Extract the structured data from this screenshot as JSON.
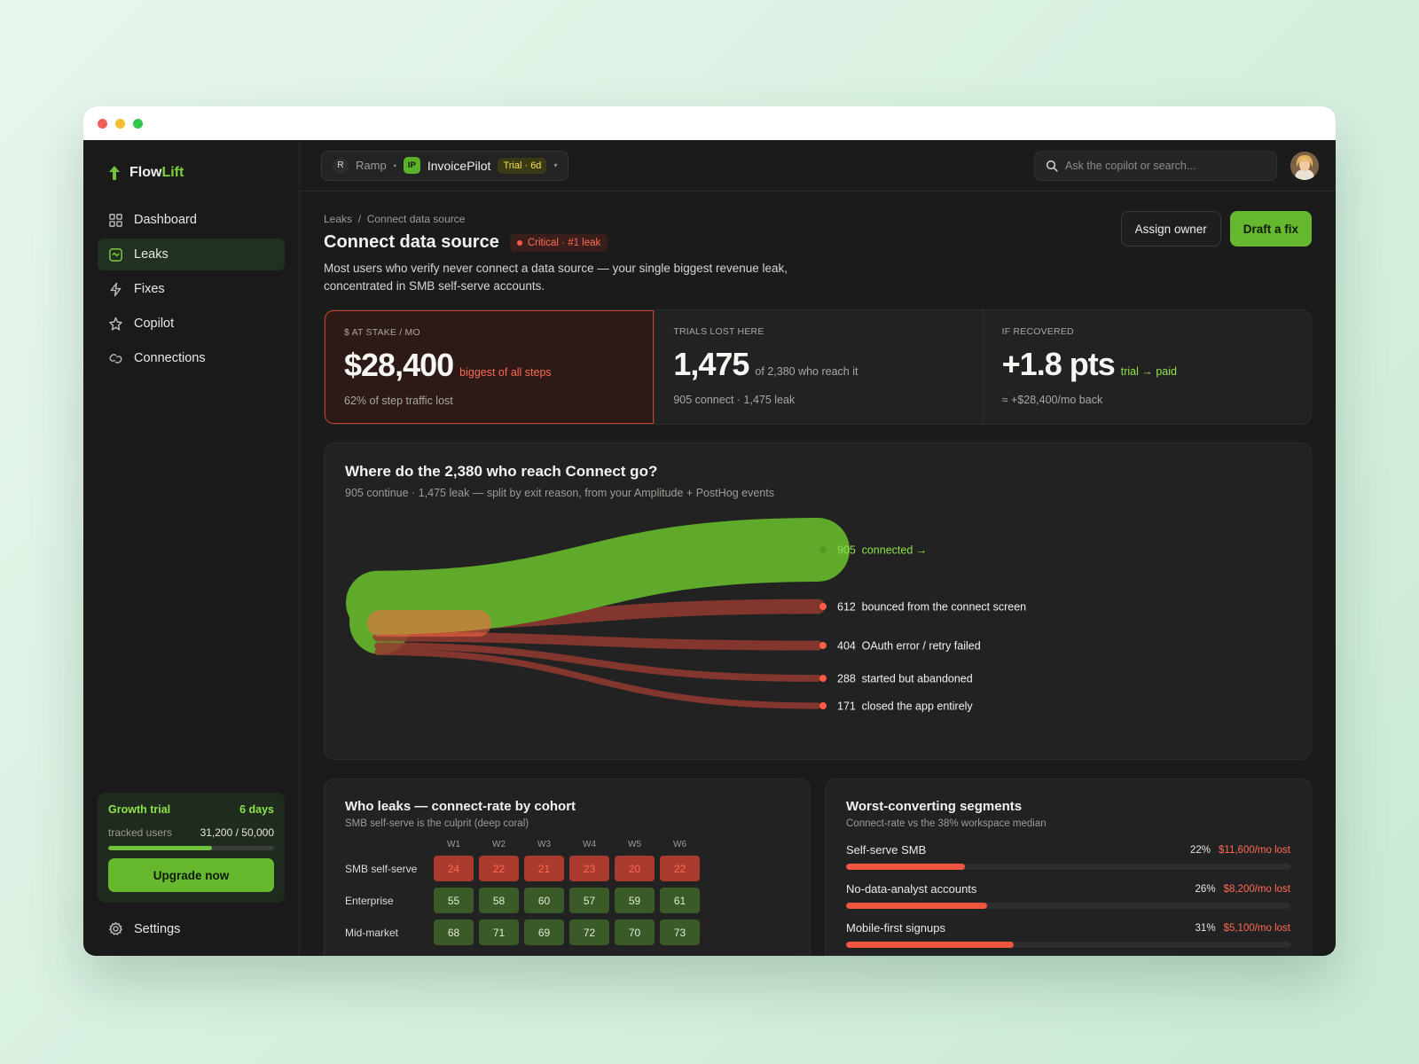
{
  "app": {
    "logo_text_a": "Flow",
    "logo_text_b": "Lift"
  },
  "sidebar": {
    "items": [
      {
        "label": "Dashboard",
        "icon": "grid-icon"
      },
      {
        "label": "Leaks",
        "icon": "leak-icon",
        "active": true
      },
      {
        "label": "Fixes",
        "icon": "bolt-icon"
      },
      {
        "label": "Copilot",
        "icon": "sparkle-icon"
      },
      {
        "label": "Connections",
        "icon": "link-icon"
      }
    ],
    "trial": {
      "title": "Growth trial",
      "days": "6 days",
      "tracked_label": "tracked users",
      "tracked_value": "31,200 / 50,000",
      "progress": 0.624,
      "upgrade_label": "Upgrade now"
    },
    "settings_label": "Settings"
  },
  "topbar": {
    "org_initial": "R",
    "org_name": "Ramp",
    "sep": "•",
    "app_initials": "IP",
    "app_name": "InvoicePilot",
    "trial_pill": "Trial · 6d",
    "caret": "▾",
    "search_placeholder": "Ask the copilot or search..."
  },
  "header": {
    "breadcrumb": "Leaks  /  Connect data source",
    "title": "Connect data source",
    "badge": "Critical · #1 leak",
    "description": "Most users who verify never connect a data source — your single biggest revenue leak, concentrated in SMB self-serve accounts.",
    "assign_label": "Assign owner",
    "draft_label": "Draft a fix"
  },
  "stats": [
    {
      "label": "$ AT STAKE / MO",
      "value": "$28,400",
      "aside": "biggest of all steps",
      "sub": "62% of step traffic lost"
    },
    {
      "label": "TRIALS LOST HERE",
      "value": "1,475",
      "aside": "of 2,380 who reach it",
      "sub": "905 connect · 1,475 leak"
    },
    {
      "label": "IF RECOVERED",
      "value": "+1.8 pts",
      "aside": "trial → paid",
      "sub": "≈ +$28,400/mo back"
    }
  ],
  "flow": {
    "title": "Where do the 2,380 who reach Connect go?",
    "subtitle": "905 continue · 1,475 leak — split by exit reason, from your Amplitude + PostHog events",
    "total": 2380,
    "branches": [
      {
        "value": 905,
        "count": "905",
        "label": "connected →",
        "kind": "good"
      },
      {
        "value": 612,
        "count": "612",
        "label": "bounced from the connect screen",
        "kind": "bad"
      },
      {
        "value": 404,
        "count": "404",
        "label": "OAuth error / retry failed",
        "kind": "bad"
      },
      {
        "value": 288,
        "count": "288",
        "label": "started but abandoned",
        "kind": "bad"
      },
      {
        "value": 171,
        "count": "171",
        "label": "closed the app entirely",
        "kind": "bad"
      }
    ]
  },
  "cohort": {
    "title": "Who leaks — connect-rate by cohort",
    "subtitle": "SMB self-serve is the culprit (deep coral)",
    "weeks": [
      "W1",
      "W2",
      "W3",
      "W4",
      "W5",
      "W6"
    ],
    "rows": [
      {
        "name": "SMB self-serve",
        "values": [
          24,
          22,
          21,
          23,
          20,
          22
        ],
        "bad": true
      },
      {
        "name": "Enterprise",
        "values": [
          55,
          58,
          60,
          57,
          59,
          61
        ],
        "bad": false
      },
      {
        "name": "Mid-market",
        "values": [
          68,
          71,
          69,
          72,
          70,
          73
        ],
        "bad": false
      }
    ]
  },
  "segments": {
    "title": "Worst-converting segments",
    "subtitle": "Connect-rate vs the 38% workspace median",
    "items": [
      {
        "name": "Self-serve SMB",
        "pct": "22%",
        "lost": "$11,600/mo lost",
        "rate": 22
      },
      {
        "name": "No-data-analyst accounts",
        "pct": "26%",
        "lost": "$8,200/mo lost",
        "rate": 26
      },
      {
        "name": "Mobile-first signups",
        "pct": "31%",
        "lost": "$5,100/mo lost",
        "rate": 31
      }
    ]
  },
  "colors": {
    "accent": "#66b92e",
    "leak": "#f0553f",
    "flow_good": "#5faa2a",
    "flow_bad": "#93392f"
  }
}
